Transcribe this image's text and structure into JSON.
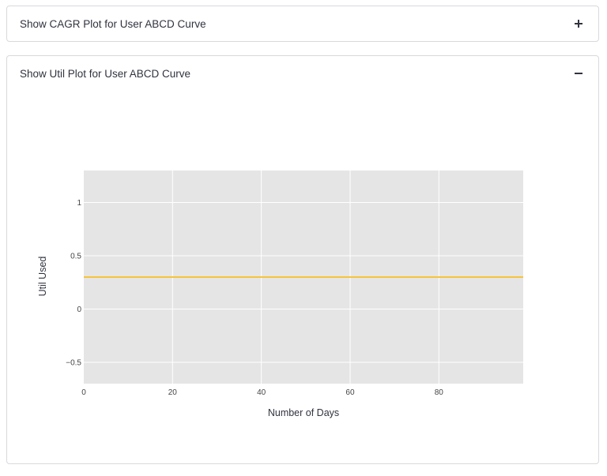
{
  "expanders": [
    {
      "title": "Show CAGR Plot for User ABCD Curve",
      "state": "collapsed",
      "toggle_icon": "plus-icon"
    },
    {
      "title": "Show Util Plot for User ABCD Curve",
      "state": "expanded",
      "toggle_icon": "minus-icon"
    }
  ],
  "colors": {
    "plot_bg": "#e5e5e5",
    "grid": "#ffffff",
    "line": "#f8c33a",
    "text": "#31333f"
  },
  "chart_data": {
    "type": "line",
    "title": "",
    "xlabel": "Number of Days",
    "ylabel": "Util Used",
    "xlim": [
      0,
      99
    ],
    "ylim": [
      -0.7,
      1.3
    ],
    "x_ticks": [
      0,
      20,
      40,
      60,
      80
    ],
    "y_ticks": [
      -0.5,
      0,
      0.5,
      1
    ],
    "x_tick_labels": [
      "0",
      "20",
      "40",
      "60",
      "80"
    ],
    "y_tick_labels": [
      "−0.5",
      "0",
      "0.5",
      "1"
    ],
    "grid": true,
    "series": [
      {
        "x": [
          0,
          99
        ],
        "y": [
          0.3,
          0.3
        ]
      }
    ]
  }
}
